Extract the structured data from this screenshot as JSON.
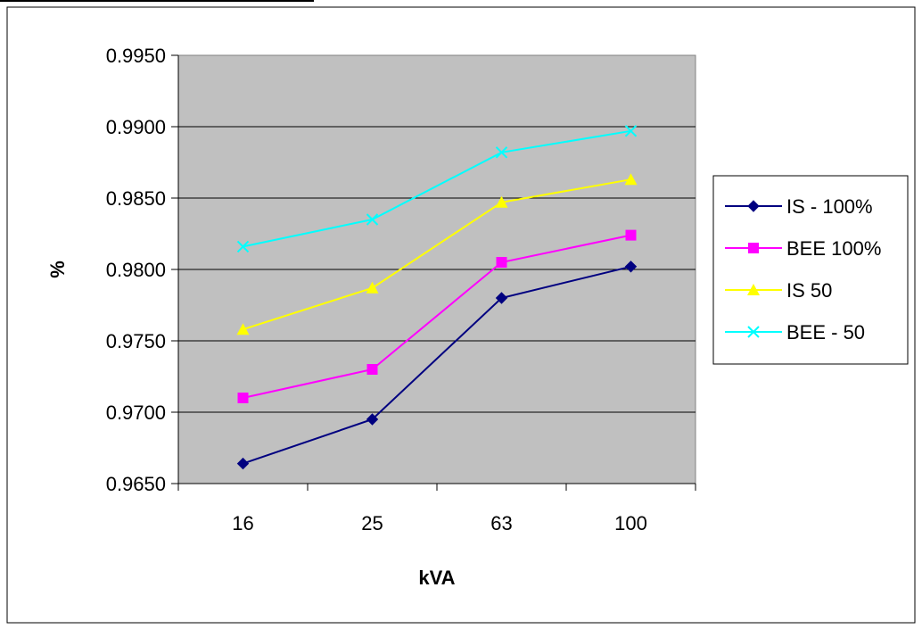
{
  "chart_data": {
    "type": "line",
    "categories": [
      "16",
      "25",
      "63",
      "100"
    ],
    "xlabel": "kVA",
    "ylabel": "%",
    "ylim": [
      0.965,
      0.995
    ],
    "yticks": [
      "0.9650",
      "0.9700",
      "0.9750",
      "0.9800",
      "0.9850",
      "0.9900",
      "0.9950"
    ],
    "grid": true,
    "plot_background": "#c0c0c0",
    "legend_position": "right",
    "series": [
      {
        "name": "IS - 100%",
        "values": [
          0.9664,
          0.9695,
          0.978,
          0.9802
        ],
        "color": "#000080",
        "marker": "diamond"
      },
      {
        "name": "BEE 100%",
        "values": [
          0.971,
          0.973,
          0.9805,
          0.9824
        ],
        "color": "#ff00ff",
        "marker": "square"
      },
      {
        "name": "IS 50",
        "values": [
          0.9758,
          0.9787,
          0.9847,
          0.9863
        ],
        "color": "#ffff00",
        "marker": "triangle"
      },
      {
        "name": "BEE - 50",
        "values": [
          0.9816,
          0.9835,
          0.9882,
          0.9897
        ],
        "color": "#00ffff",
        "marker": "x"
      }
    ]
  }
}
